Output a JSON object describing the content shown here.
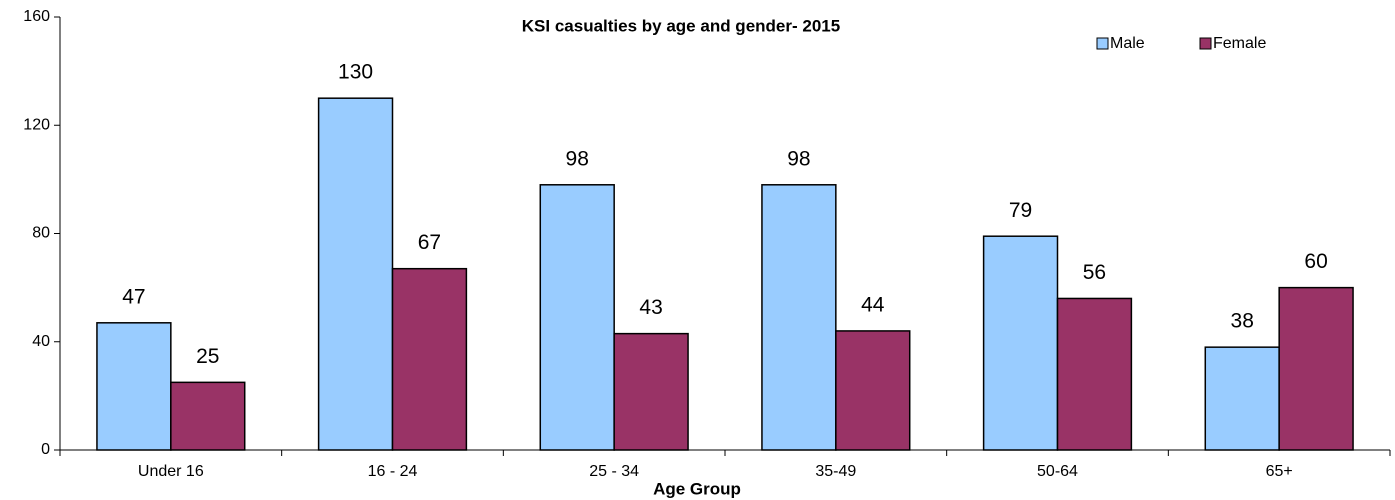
{
  "chart_data": {
    "type": "bar",
    "title": "KSI casualties by age and gender- 2015",
    "x_label": "Age Group",
    "categories": [
      "Under 16",
      "16 - 24",
      "25 - 34",
      "35-49",
      "50-64",
      "65+"
    ],
    "series": [
      {
        "name": "Male",
        "color": "#99ccff",
        "values": [
          47,
          130,
          98,
          98,
          79,
          38
        ]
      },
      {
        "name": "Female",
        "color": "#993366",
        "values": [
          25,
          67,
          43,
          44,
          56,
          60
        ]
      }
    ],
    "ylim": [
      0,
      160
    ],
    "yticks": [
      0,
      40,
      80,
      120,
      160
    ],
    "grid": false,
    "legend": "top-right",
    "data_labels": true
  }
}
